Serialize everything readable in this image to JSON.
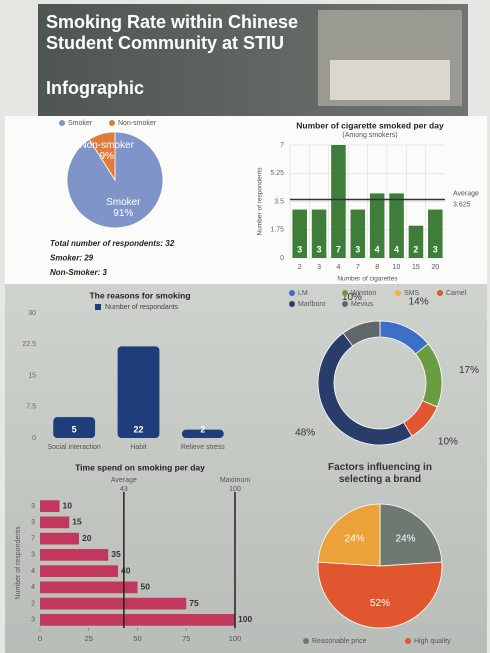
{
  "header": {
    "title": "Smoking Rate within Chinese Student Community at STIU",
    "subtitle": "Infographic"
  },
  "chart_data": [
    {
      "type": "pie",
      "categories": [
        "Smoker",
        "Non-smoker"
      ],
      "values": [
        91,
        9
      ],
      "value_labels": [
        "91%",
        "9%"
      ],
      "colors": [
        "#7f95c9",
        "#e07b3c"
      ],
      "notes": [
        "Total number of respondents: 32",
        "Smoker: 29",
        "Non-Smoker: 3"
      ]
    },
    {
      "type": "bar",
      "title": "Number of cigarette smoked per day",
      "subtitle": "(Among smokers)",
      "categories": [
        "2",
        "3",
        "4",
        "7",
        "8",
        "10",
        "15",
        "20"
      ],
      "values": [
        3,
        3,
        7,
        3,
        4,
        4,
        2,
        3
      ],
      "color": "#3f7d3a",
      "ylim": [
        0,
        7
      ],
      "yticks": [
        0,
        1.75,
        3.5,
        5.25,
        7
      ],
      "grid": true,
      "x_label": "Number of cigarettes",
      "y_label": "Number of respondents",
      "ref_lines": [
        {
          "name": "Average",
          "value": 3.625
        }
      ]
    },
    {
      "type": "bar",
      "title": "The reasons for smoking",
      "categories": [
        "Social interaction",
        "Habit",
        "Relieve stress"
      ],
      "series": [
        {
          "name": "Number of respondants",
          "color": "#1f3d7a",
          "values": [
            5,
            22,
            2
          ]
        }
      ],
      "ylim": [
        0,
        30
      ],
      "yticks": [
        0,
        7.5,
        15,
        22.5,
        30
      ],
      "grid": false
    },
    {
      "type": "donut",
      "categories": [
        "LM",
        "Winston",
        "SMS",
        "Camel",
        "Marlboro",
        "Mevius"
      ],
      "values": [
        14,
        17,
        0,
        10,
        48,
        10
      ],
      "value_labels": [
        "14%",
        "17%",
        null,
        "10%",
        "48%",
        "10%"
      ],
      "colors": [
        "#3d6fc6",
        "#6a9c40",
        "#f0b43a",
        "#e0562e",
        "#2a3d6a",
        "#5f6868"
      ]
    },
    {
      "type": "hbar",
      "title": "Time spend on smoking per day",
      "categories": [
        "3",
        "3",
        "7",
        "3",
        "4",
        "4",
        "2",
        "3"
      ],
      "values": [
        10,
        15,
        20,
        35,
        40,
        50,
        75,
        100
      ],
      "color": "#c2375c",
      "xlim": [
        0,
        100
      ],
      "xticks": [
        0,
        25,
        50,
        75,
        100
      ],
      "y_label": "Number of respondents",
      "ref_lines": [
        {
          "name": "Average",
          "value": 43
        },
        {
          "name": "Maximum",
          "value": 100
        }
      ]
    },
    {
      "type": "pie",
      "title": "Factors influencing in selecting a brand",
      "categories": [
        "Reasonable price",
        "High quality",
        null
      ],
      "values": [
        24,
        52,
        24
      ],
      "value_labels": [
        "24%",
        "52%",
        "24%"
      ],
      "colors": [
        "#6f7972",
        "#e0562e",
        "#eba23a"
      ]
    }
  ]
}
